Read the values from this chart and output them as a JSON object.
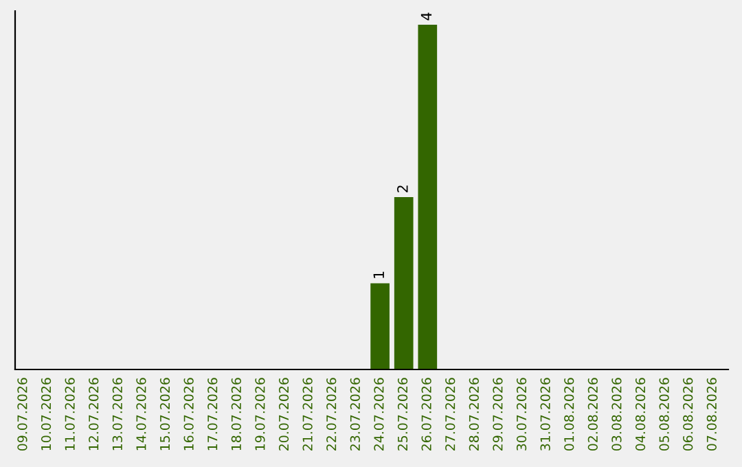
{
  "chart_data": {
    "type": "bar",
    "categories": [
      "09.07.2026",
      "10.07.2026",
      "11.07.2026",
      "12.07.2026",
      "13.07.2026",
      "14.07.2026",
      "15.07.2026",
      "16.07.2026",
      "17.07.2026",
      "18.07.2026",
      "19.07.2026",
      "20.07.2026",
      "21.07.2026",
      "22.07.2026",
      "23.07.2026",
      "24.07.2026",
      "25.07.2026",
      "26.07.2026",
      "27.07.2026",
      "28.07.2026",
      "29.07.2026",
      "30.07.2026",
      "31.07.2026",
      "01.08.2026",
      "02.08.2026",
      "03.08.2026",
      "04.08.2026",
      "05.08.2026",
      "06.08.2026",
      "07.08.2026"
    ],
    "values": [
      null,
      null,
      null,
      null,
      null,
      null,
      null,
      null,
      null,
      null,
      null,
      null,
      null,
      null,
      null,
      1,
      2,
      4,
      null,
      null,
      null,
      null,
      null,
      null,
      null,
      null,
      null,
      null,
      null,
      null
    ],
    "value_labels": [
      null,
      null,
      null,
      null,
      null,
      null,
      null,
      null,
      null,
      null,
      null,
      null,
      null,
      null,
      null,
      "1",
      "2",
      "4",
      null,
      null,
      null,
      null,
      null,
      null,
      null,
      null,
      null,
      null,
      null,
      null
    ],
    "color": "#336600",
    "grid": false,
    "legend": false
  }
}
